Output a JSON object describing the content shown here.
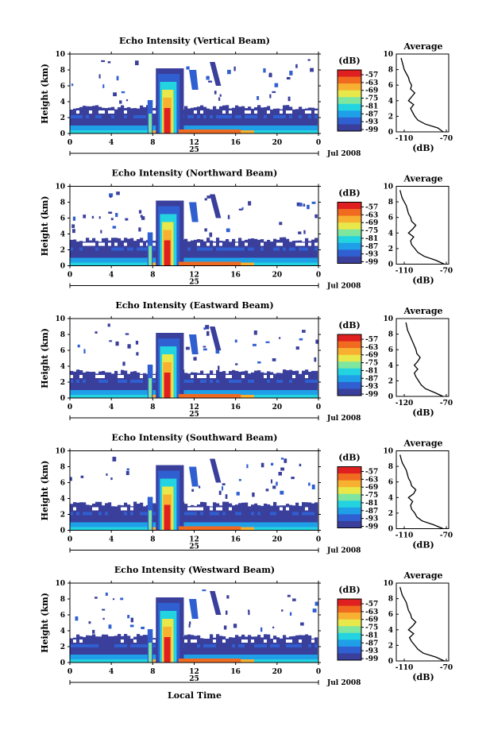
{
  "panels": [
    {
      "id": "vertical",
      "title": "Echo Intensity (Vertical Beam)",
      "avg_xticks": [
        "-110",
        "-70"
      ],
      "avg_range": [
        -110,
        -70
      ]
    },
    {
      "id": "northward",
      "title": "Echo Intensity (Northward Beam)",
      "avg_xticks": [
        "-110",
        "-70"
      ],
      "avg_range": [
        -110,
        -70
      ]
    },
    {
      "id": "eastward",
      "title": "Echo Intensity (Eastward Beam)",
      "avg_xticks": [
        "-120",
        "-70"
      ],
      "avg_range": [
        -120,
        -70
      ]
    },
    {
      "id": "southward",
      "title": "Echo Intensity (Southward Beam)",
      "avg_xticks": [
        "-110",
        "-70"
      ],
      "avg_range": [
        -110,
        -70
      ]
    },
    {
      "id": "westward",
      "title": "Echo Intensity (Westward Beam)",
      "avg_xticks": [
        "-110",
        "-70"
      ],
      "avg_range": [
        -110,
        -70
      ]
    }
  ],
  "common": {
    "ylabel": "Height (km)",
    "yticks": [
      "0",
      "2",
      "4",
      "6",
      "8",
      "10"
    ],
    "xticks": [
      "0",
      "4",
      "8",
      "12",
      "16",
      "20",
      "0"
    ],
    "day_label": "25",
    "month_year": "Jul 2008",
    "colorbar_unit": "(dB)",
    "colorbar_ticks": [
      "-57",
      "-63",
      "-69",
      "-75",
      "-81",
      "-87",
      "-93",
      "-99"
    ],
    "avg_title": "Average",
    "avg_xlabel": "(dB)",
    "avg_yticks": [
      "0",
      "2",
      "4",
      "6",
      "8",
      "10"
    ],
    "xlabel_bottom": "Local Time"
  },
  "colors": {
    "colormap": [
      "#3a3f9c",
      "#2f5fd0",
      "#1f9fe8",
      "#23d3e0",
      "#7fe6a0",
      "#e8e84a",
      "#f8b030",
      "#f06a20",
      "#e02020"
    ]
  },
  "chart_data": {
    "type": "heatmap",
    "description_source": "five echo-intensity time-height panels with height-averaged profiles",
    "x_unit": "Local Time (h)",
    "x_range": [
      0,
      24
    ],
    "y_range_km": [
      0,
      10
    ],
    "color_range_db": [
      -99,
      -57
    ],
    "average_profiles": {
      "heights_km": [
        0,
        0.5,
        1,
        1.5,
        2,
        2.5,
        3,
        3.5,
        4,
        4.5,
        5,
        5.5,
        6,
        6.5,
        7,
        7.5,
        8,
        8.5,
        9,
        9.5
      ],
      "vertical": [
        -73,
        -78,
        -90,
        -97,
        -100,
        -102,
        -104,
        -101,
        -106,
        -103,
        -100,
        -104,
        -103,
        -105,
        -106,
        -108,
        -110,
        -111,
        -112,
        -113
      ],
      "northward": [
        -72,
        -80,
        -91,
        -97,
        -100,
        -103,
        -104,
        -101,
        -106,
        -102,
        -99,
        -103,
        -104,
        -106,
        -107,
        -108,
        -110,
        -112,
        -113,
        -114
      ],
      "eastward": [
        -74,
        -84,
        -95,
        -100,
        -103,
        -106,
        -108,
        -104,
        -108,
        -104,
        -101,
        -105,
        -106,
        -108,
        -110,
        -112,
        -114,
        -116,
        -117,
        -118
      ],
      "southward": [
        -73,
        -82,
        -93,
        -98,
        -100,
        -103,
        -104,
        -102,
        -106,
        -101,
        -99,
        -103,
        -104,
        -106,
        -107,
        -108,
        -110,
        -112,
        -113,
        -114
      ],
      "westward": [
        -72,
        -80,
        -92,
        -97,
        -100,
        -103,
        -105,
        -101,
        -106,
        -102,
        -99,
        -103,
        -104,
        -106,
        -107,
        -108,
        -110,
        -112,
        -113,
        -114
      ]
    }
  }
}
